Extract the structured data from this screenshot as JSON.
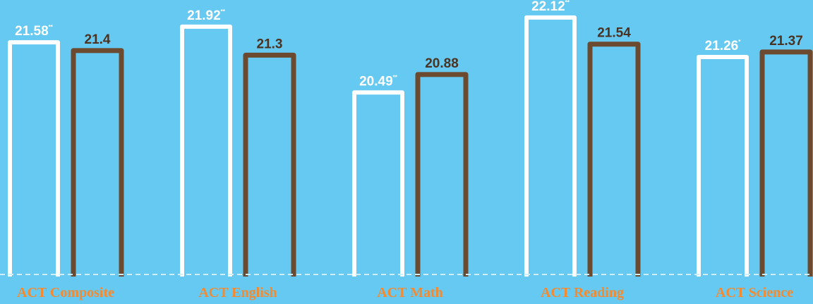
{
  "chart_data": {
    "type": "bar",
    "categories": [
      "ACT Composite",
      "ACT English",
      "ACT Math",
      "ACT Reading",
      "ACT Science"
    ],
    "series": [
      {
        "values": [
          21.58,
          21.92,
          20.49,
          22.12,
          21.26
        ],
        "labels": [
          "21.58",
          "21.92",
          "20.49",
          "22.12",
          "21.26"
        ],
        "markers": [
          "**",
          "**",
          "**",
          "**",
          "*"
        ],
        "color": "#ffffff"
      },
      {
        "values": [
          21.4,
          21.3,
          20.88,
          21.54,
          21.37
        ],
        "labels": [
          "21.4",
          "21.3",
          "20.88",
          "21.54",
          "21.37"
        ],
        "color": "#6b4a2f"
      }
    ],
    "ylim": [
      16.5,
      22.5
    ],
    "grid": false,
    "colors": {
      "background": "#66c9f2",
      "baseline": "#cdeefb",
      "category_text": "#f58a2e"
    }
  }
}
